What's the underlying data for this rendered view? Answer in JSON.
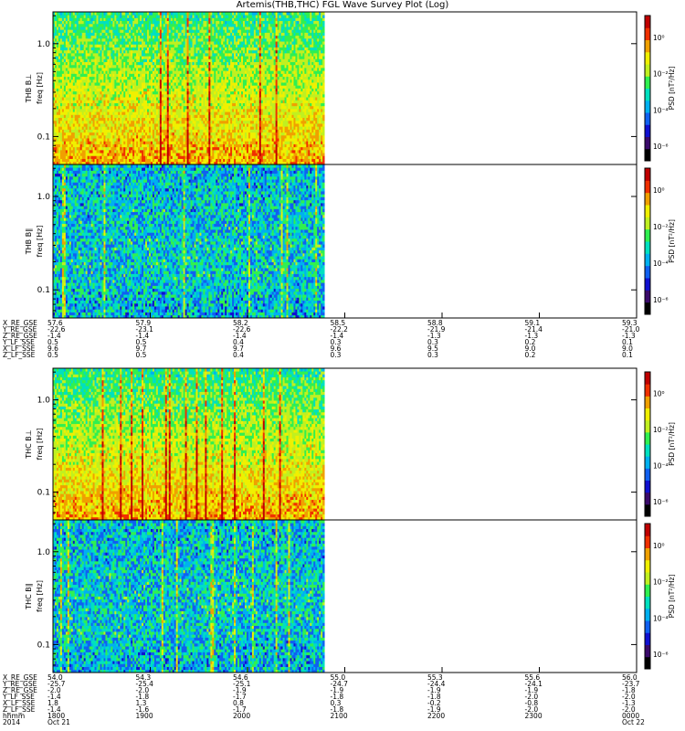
{
  "title": "Artemis(THB,THC) FGL Wave Survey Plot (Log)",
  "colorbar_label": "PSD [nT²/Hz]",
  "colorbar_ticks": [
    "10⁰",
    "10⁻²",
    "10⁻⁴",
    "10⁻⁶"
  ],
  "colors": {
    "scale": [
      "#000000",
      "#3a0a6a",
      "#1010d0",
      "#1060f0",
      "#00b0f0",
      "#00e0c0",
      "#30f050",
      "#c0f020",
      "#f0f000",
      "#f0a000",
      "#f03000",
      "#c00000"
    ]
  },
  "chart_data": [
    {
      "type": "heatmap",
      "ylabel": "THB B⊥",
      "yunit": "freq [Hz]",
      "yticks": [
        "1.0",
        "0.1"
      ],
      "ylim": [
        0.05,
        2.2
      ],
      "data_end_fraction": 0.465,
      "intensity_profile": "high",
      "colorbar_label": "PSD [nT²/Hz]"
    },
    {
      "type": "heatmap",
      "ylabel": "THB B∥",
      "yunit": "freq [Hz]",
      "yticks": [
        "1.0",
        "0.1"
      ],
      "ylim": [
        0.05,
        2.2
      ],
      "data_end_fraction": 0.465,
      "intensity_profile": "low",
      "colorbar_label": "PSD [nT²/Hz]"
    },
    {
      "type": "heatmap",
      "ylabel": "THC B⊥",
      "yunit": "freq [Hz]",
      "yticks": [
        "1.0",
        "0.1"
      ],
      "ylim": [
        0.05,
        2.2
      ],
      "data_end_fraction": 0.465,
      "intensity_profile": "high",
      "colorbar_label": "PSD [nT²/Hz]"
    },
    {
      "type": "heatmap",
      "ylabel": "THC B∥",
      "yunit": "freq [Hz]",
      "yticks": [
        "1.0",
        "0.1"
      ],
      "ylim": [
        0.05,
        2.2
      ],
      "data_end_fraction": 0.465,
      "intensity_profile": "low",
      "colorbar_label": "PSD [nT²/Hz]"
    }
  ],
  "ephemeris_thb": {
    "labels": [
      "X_RE_GSE",
      "Y_RE_GSE",
      "Z_RE_GSE",
      "Y_LF_SSE",
      "X_LF_SSE",
      "Z_LF_SSE"
    ],
    "columns": [
      [
        "57.6",
        "-22.6",
        "-1.4",
        "0.5",
        "9.6",
        "0.5"
      ],
      [
        "57.9",
        "-23.1",
        "-1.4",
        "0.5",
        "9.7",
        "0.5"
      ],
      [
        "58.2",
        "-22.6",
        "-1.4",
        "0.4",
        "9.7",
        "0.4"
      ],
      [
        "58.5",
        "-22.2",
        "-1.4",
        "0.3",
        "9.6",
        "0.3"
      ],
      [
        "58.8",
        "-21.9",
        "-1.3",
        "0.3",
        "9.5",
        "0.3"
      ],
      [
        "59.1",
        "-21.4",
        "-1.3",
        "0.2",
        "9.0",
        "0.2"
      ],
      [
        "59.3",
        "-21.0",
        "-1.3",
        "0.1",
        "9.0",
        "0.1"
      ]
    ]
  },
  "ephemeris_thc": {
    "labels": [
      "X_RE_GSE",
      "Y_RE_GSE",
      "Z_RE_GSE",
      "Y_LF_SSE",
      "X_LF_SSE",
      "Z_LF_SSE",
      "hhmm",
      "2014"
    ],
    "columns": [
      [
        "54.0",
        "-25.7",
        "-2.0",
        "-1.4",
        "1.8",
        "-1.4",
        "1800",
        "Oct 21"
      ],
      [
        "54.3",
        "-25.4",
        "-2.0",
        "-1.8",
        "1.3",
        "-1.6",
        "1900",
        ""
      ],
      [
        "54.6",
        "-25.1",
        "-1.9",
        "-1.7",
        "0.8",
        "-1.7",
        "2000",
        ""
      ],
      [
        "55.0",
        "-24.7",
        "-1.9",
        "-1.8",
        "0.3",
        "-1.8",
        "2100",
        ""
      ],
      [
        "55.3",
        "-24.4",
        "-1.9",
        "-1.8",
        "-0.2",
        "-1.9",
        "2200",
        ""
      ],
      [
        "55.6",
        "-24.1",
        "-1.9",
        "-2.0",
        "-0.8",
        "-2.0",
        "2300",
        ""
      ],
      [
        "56.0",
        "-23.7",
        "-1.8",
        "-2.0",
        "-1.3",
        "-2.0",
        "0000",
        "Oct 22"
      ]
    ]
  }
}
